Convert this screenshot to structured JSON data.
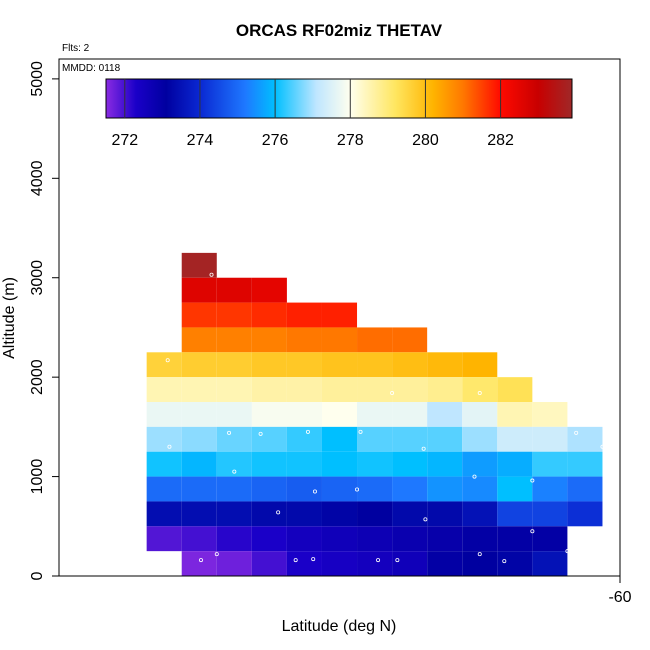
{
  "chart_data": {
    "type": "heatmap",
    "title": "ORCAS RF02miz THETAV",
    "xlabel": "Latitude (deg N)",
    "ylabel": "Altitude (m)",
    "annotations": {
      "flights": "Flts: 2",
      "mmdd": "MMDD: 0118"
    },
    "xlim": [
      -63.2,
      -60
    ],
    "ylim": [
      0,
      5200
    ],
    "x_ticks": [
      {
        "value": -60,
        "label": "-60"
      }
    ],
    "y_ticks": [
      {
        "value": 0,
        "label": "0"
      },
      {
        "value": 1000,
        "label": "1000"
      },
      {
        "value": 2000,
        "label": "2000"
      },
      {
        "value": 3000,
        "label": "3000"
      },
      {
        "value": 4000,
        "label": "4000"
      },
      {
        "value": 5000,
        "label": "5000"
      }
    ],
    "colorbar": {
      "min": 271.5,
      "max": 283.9,
      "ticks": [
        272,
        274,
        276,
        278,
        280,
        282
      ],
      "tick_labels": [
        "272",
        "274",
        "276",
        "278",
        "280",
        "282"
      ],
      "colors": [
        "#8a2be2",
        "#1a00c8",
        "#0000a0",
        "#0a28d2",
        "#1e78ff",
        "#00bfff",
        "#bfe6ff",
        "#ffffee",
        "#ffe660",
        "#ffb400",
        "#ff7800",
        "#ff0a00",
        "#c80000",
        "#a02828"
      ],
      "positions": [
        271.5,
        272.3,
        273.1,
        274.0,
        275.2,
        276.0,
        277.1,
        278.0,
        279.2,
        280.2,
        281.0,
        282.0,
        283.0,
        283.9
      ]
    },
    "bin_width_deg": 0.2,
    "altitude_bin_m": 250,
    "cells": [
      {
        "alt": 3000,
        "values": [
          {
            "lat": -62.4,
            "v": 283.8
          }
        ]
      },
      {
        "alt": 2750,
        "values": [
          {
            "lat": -62.4,
            "v": 282.6
          },
          {
            "lat": -62.2,
            "v": 282.6
          },
          {
            "lat": -62.0,
            "v": 282.5
          }
        ]
      },
      {
        "alt": 2500,
        "values": [
          {
            "lat": -62.4,
            "v": 281.6
          },
          {
            "lat": -62.2,
            "v": 281.6
          },
          {
            "lat": -62.0,
            "v": 281.7
          },
          {
            "lat": -61.8,
            "v": 281.8
          },
          {
            "lat": -61.6,
            "v": 281.8
          }
        ]
      },
      {
        "alt": 2250,
        "values": [
          {
            "lat": -62.4,
            "v": 280.9
          },
          {
            "lat": -62.2,
            "v": 280.9
          },
          {
            "lat": -62.0,
            "v": 280.9
          },
          {
            "lat": -61.8,
            "v": 281.0
          },
          {
            "lat": -61.6,
            "v": 281.0
          },
          {
            "lat": -61.4,
            "v": 281.1
          },
          {
            "lat": -61.2,
            "v": 281.1
          }
        ]
      },
      {
        "alt": 2000,
        "values": [
          {
            "lat": -62.6,
            "v": 279.6
          },
          {
            "lat": -62.4,
            "v": 279.7
          },
          {
            "lat": -62.2,
            "v": 279.7
          },
          {
            "lat": -62.0,
            "v": 279.8
          },
          {
            "lat": -61.8,
            "v": 279.8
          },
          {
            "lat": -61.6,
            "v": 279.9
          },
          {
            "lat": -61.4,
            "v": 279.9
          },
          {
            "lat": -61.2,
            "v": 280.0
          },
          {
            "lat": -61.0,
            "v": 280.1
          },
          {
            "lat": -60.8,
            "v": 280.2
          }
        ]
      },
      {
        "alt": 1750,
        "values": [
          {
            "lat": -62.6,
            "v": 278.5
          },
          {
            "lat": -62.4,
            "v": 278.5
          },
          {
            "lat": -62.2,
            "v": 278.5
          },
          {
            "lat": -62.0,
            "v": 278.6
          },
          {
            "lat": -61.8,
            "v": 278.6
          },
          {
            "lat": -61.6,
            "v": 278.7
          },
          {
            "lat": -61.4,
            "v": 278.7
          },
          {
            "lat": -61.2,
            "v": 278.7
          },
          {
            "lat": -61.0,
            "v": 278.8
          },
          {
            "lat": -60.8,
            "v": 279.1
          },
          {
            "lat": -60.6,
            "v": 279.3
          }
        ]
      },
      {
        "alt": 1500,
        "values": [
          {
            "lat": -62.6,
            "v": 277.7
          },
          {
            "lat": -62.4,
            "v": 277.7
          },
          {
            "lat": -62.2,
            "v": 277.7
          },
          {
            "lat": -62.0,
            "v": 277.9
          },
          {
            "lat": -61.8,
            "v": 277.9
          },
          {
            "lat": -61.6,
            "v": 278.0
          },
          {
            "lat": -61.4,
            "v": 277.7
          },
          {
            "lat": -61.2,
            "v": 277.7
          },
          {
            "lat": -61.0,
            "v": 277.1
          },
          {
            "lat": -60.8,
            "v": 277.6
          },
          {
            "lat": -60.6,
            "v": 278.5
          },
          {
            "lat": -60.4,
            "v": 278.4
          }
        ]
      },
      {
        "alt": 1250,
        "values": [
          {
            "lat": -62.6,
            "v": 276.9
          },
          {
            "lat": -62.4,
            "v": 276.8
          },
          {
            "lat": -62.2,
            "v": 276.6
          },
          {
            "lat": -62.0,
            "v": 276.5
          },
          {
            "lat": -61.8,
            "v": 276.3
          },
          {
            "lat": -61.6,
            "v": 276.0
          },
          {
            "lat": -61.4,
            "v": 276.5
          },
          {
            "lat": -61.2,
            "v": 276.5
          },
          {
            "lat": -61.0,
            "v": 276.5
          },
          {
            "lat": -60.8,
            "v": 276.9
          },
          {
            "lat": -60.6,
            "v": 277.3
          },
          {
            "lat": -60.4,
            "v": 277.3
          },
          {
            "lat": -60.2,
            "v": 277.0
          }
        ]
      },
      {
        "alt": 1000,
        "values": [
          {
            "lat": -62.6,
            "v": 276.1
          },
          {
            "lat": -62.4,
            "v": 275.9
          },
          {
            "lat": -62.2,
            "v": 276.2
          },
          {
            "lat": -62.0,
            "v": 276.1
          },
          {
            "lat": -61.8,
            "v": 276.1
          },
          {
            "lat": -61.6,
            "v": 276.0
          },
          {
            "lat": -61.4,
            "v": 276.1
          },
          {
            "lat": -61.2,
            "v": 276.0
          },
          {
            "lat": -61.0,
            "v": 275.9
          },
          {
            "lat": -60.8,
            "v": 275.6
          },
          {
            "lat": -60.6,
            "v": 275.8
          },
          {
            "lat": -60.4,
            "v": 276.3
          },
          {
            "lat": -60.2,
            "v": 276.3
          }
        ]
      },
      {
        "alt": 750,
        "values": [
          {
            "lat": -62.6,
            "v": 275.0
          },
          {
            "lat": -62.4,
            "v": 275.0
          },
          {
            "lat": -62.2,
            "v": 275.0
          },
          {
            "lat": -62.0,
            "v": 274.9
          },
          {
            "lat": -61.8,
            "v": 274.8
          },
          {
            "lat": -61.6,
            "v": 274.9
          },
          {
            "lat": -61.4,
            "v": 275.0
          },
          {
            "lat": -61.2,
            "v": 275.2
          },
          {
            "lat": -61.0,
            "v": 275.5
          },
          {
            "lat": -60.8,
            "v": 275.4
          },
          {
            "lat": -60.6,
            "v": 276.0
          },
          {
            "lat": -60.4,
            "v": 275.3
          },
          {
            "lat": -60.2,
            "v": 275.0
          }
        ]
      },
      {
        "alt": 500,
        "values": [
          {
            "lat": -62.6,
            "v": 273.4
          },
          {
            "lat": -62.4,
            "v": 273.4
          },
          {
            "lat": -62.2,
            "v": 273.4
          },
          {
            "lat": -62.0,
            "v": 273.3
          },
          {
            "lat": -61.8,
            "v": 273.3
          },
          {
            "lat": -61.6,
            "v": 273.2
          },
          {
            "lat": -61.4,
            "v": 273.1
          },
          {
            "lat": -61.2,
            "v": 273.3
          },
          {
            "lat": -61.0,
            "v": 273.3
          },
          {
            "lat": -60.8,
            "v": 273.5
          },
          {
            "lat": -60.6,
            "v": 274.4
          },
          {
            "lat": -60.4,
            "v": 274.4
          },
          {
            "lat": -60.2,
            "v": 274.1
          }
        ]
      },
      {
        "alt": 250,
        "values": [
          {
            "lat": -62.6,
            "v": 271.9
          },
          {
            "lat": -62.4,
            "v": 272.0
          },
          {
            "lat": -62.2,
            "v": 272.2
          },
          {
            "lat": -62.0,
            "v": 272.3
          },
          {
            "lat": -61.8,
            "v": 272.5
          },
          {
            "lat": -61.6,
            "v": 272.6
          },
          {
            "lat": -61.4,
            "v": 272.7
          },
          {
            "lat": -61.2,
            "v": 272.8
          },
          {
            "lat": -61.0,
            "v": 272.9
          },
          {
            "lat": -60.8,
            "v": 273.0
          },
          {
            "lat": -60.6,
            "v": 273.0
          },
          {
            "lat": -60.4,
            "v": 273.0
          }
        ]
      },
      {
        "alt": 0,
        "values": [
          {
            "lat": -62.4,
            "v": 271.6
          },
          {
            "lat": -62.2,
            "v": 271.7
          },
          {
            "lat": -62.0,
            "v": 272.0
          },
          {
            "lat": -61.8,
            "v": 272.3
          },
          {
            "lat": -61.6,
            "v": 272.4
          },
          {
            "lat": -61.4,
            "v": 272.5
          },
          {
            "lat": -61.2,
            "v": 272.6
          },
          {
            "lat": -61.0,
            "v": 273.0
          },
          {
            "lat": -60.8,
            "v": 273.1
          },
          {
            "lat": -60.6,
            "v": 273.2
          },
          {
            "lat": -60.4,
            "v": 273.5
          }
        ]
      }
    ],
    "sample_points": [
      {
        "lat": -62.33,
        "alt": 3030
      },
      {
        "lat": -62.58,
        "alt": 2170
      },
      {
        "lat": -61.3,
        "alt": 1840
      },
      {
        "lat": -60.8,
        "alt": 1840
      },
      {
        "lat": -62.23,
        "alt": 1440
      },
      {
        "lat": -62.05,
        "alt": 1430
      },
      {
        "lat": -61.78,
        "alt": 1450
      },
      {
        "lat": -61.48,
        "alt": 1450
      },
      {
        "lat": -60.25,
        "alt": 1440
      },
      {
        "lat": -62.57,
        "alt": 1300
      },
      {
        "lat": -61.12,
        "alt": 1280
      },
      {
        "lat": -60.1,
        "alt": 1300
      },
      {
        "lat": -60.83,
        "alt": 1000
      },
      {
        "lat": -62.2,
        "alt": 1050
      },
      {
        "lat": -60.5,
        "alt": 960
      },
      {
        "lat": -61.74,
        "alt": 850
      },
      {
        "lat": -61.5,
        "alt": 870
      },
      {
        "lat": -61.95,
        "alt": 640
      },
      {
        "lat": -61.11,
        "alt": 570
      },
      {
        "lat": -60.8,
        "alt": 220
      },
      {
        "lat": -62.76,
        "alt": 430
      },
      {
        "lat": -60.5,
        "alt": 450
      },
      {
        "lat": -60.3,
        "alt": 250
      },
      {
        "lat": -62.3,
        "alt": 220
      },
      {
        "lat": -62.39,
        "alt": 160
      },
      {
        "lat": -61.85,
        "alt": 160
      },
      {
        "lat": -61.75,
        "alt": 170
      },
      {
        "lat": -61.38,
        "alt": 160
      },
      {
        "lat": -61.27,
        "alt": 160
      },
      {
        "lat": -60.66,
        "alt": 150
      }
    ]
  }
}
